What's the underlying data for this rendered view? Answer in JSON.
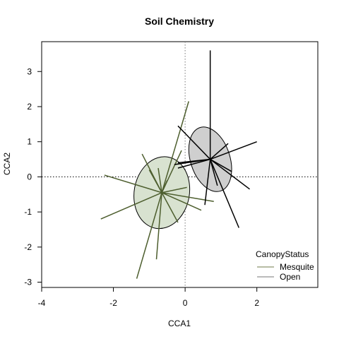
{
  "chart_data": {
    "type": "scatter",
    "title": "Soil Chemistry",
    "xlabel": "CCA1",
    "ylabel": "CCA2",
    "xlim": [
      -4.0,
      3.7
    ],
    "ylim": [
      -3.15,
      3.85
    ],
    "x_ticks": [
      -4,
      -2,
      0,
      2
    ],
    "y_ticks": [
      -3,
      -2,
      -1,
      0,
      1,
      2,
      3
    ],
    "reference_lines": {
      "x": 0,
      "y": 0,
      "style": "dotted"
    },
    "legend": {
      "title": "CanopyStatus",
      "position": "bottom-right",
      "entries": [
        "Mesquite",
        "Open"
      ]
    },
    "series": [
      {
        "name": "Mesquite",
        "color": "#4d5e2e",
        "ellipse_fill": "#d8e2d0",
        "centroid": [
          -0.65,
          -0.45
        ],
        "ellipse": {
          "center": [
            -0.65,
            -0.45
          ],
          "rx": 0.77,
          "ry": 1.03,
          "angle_deg": 10
        },
        "points": [
          [
            0.1,
            2.15
          ],
          [
            -1.2,
            0.65
          ],
          [
            -2.25,
            0.05
          ],
          [
            -1.0,
            0.2
          ],
          [
            -0.75,
            0.25
          ],
          [
            -0.1,
            0.75
          ],
          [
            -2.35,
            -1.2
          ],
          [
            -1.35,
            -2.9
          ],
          [
            -0.8,
            -2.35
          ],
          [
            -0.2,
            -1.3
          ],
          [
            0.45,
            -0.95
          ],
          [
            0.8,
            -0.7
          ],
          [
            -0.5,
            -0.1
          ],
          [
            0.05,
            -0.3
          ]
        ]
      },
      {
        "name": "Open",
        "color": "#000000",
        "ellipse_fill": "#cfcfcf",
        "centroid": [
          0.7,
          0.5
        ],
        "ellipse": {
          "center": [
            0.7,
            0.5
          ],
          "rx": 0.55,
          "ry": 0.95,
          "angle_deg": -18
        },
        "points": [
          [
            0.7,
            3.6
          ],
          [
            -0.2,
            1.45
          ],
          [
            1.2,
            0.95
          ],
          [
            2.0,
            1.0
          ],
          [
            1.8,
            -0.35
          ],
          [
            1.5,
            -1.45
          ],
          [
            0.55,
            -0.8
          ],
          [
            -0.2,
            0.4
          ],
          [
            -0.3,
            0.35
          ],
          [
            -0.2,
            0.25
          ],
          [
            1.3,
            0.15
          ],
          [
            0.9,
            -0.25
          ]
        ]
      }
    ]
  }
}
